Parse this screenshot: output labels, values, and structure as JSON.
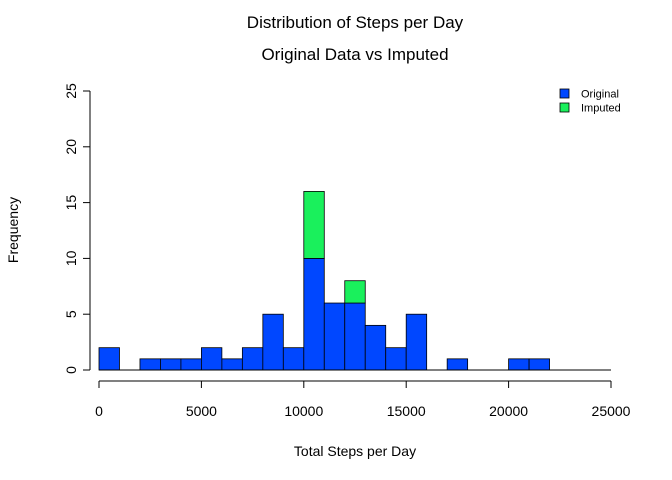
{
  "chart_data": {
    "type": "bar",
    "title": "Distribution of Steps per Day",
    "subtitle": "Original Data vs Imputed",
    "xlabel": "Total Steps per Day",
    "ylabel": "Frequency",
    "xlim": [
      0,
      25000
    ],
    "ylim": [
      0,
      25
    ],
    "xticks": [
      "0",
      "5000",
      "10000",
      "15000",
      "20000",
      "25000"
    ],
    "yticks": [
      "0",
      "5",
      "10",
      "15",
      "20",
      "25"
    ],
    "bin_width": 1000,
    "bin_starts": [
      0,
      1000,
      2000,
      3000,
      4000,
      5000,
      6000,
      7000,
      8000,
      9000,
      10000,
      11000,
      12000,
      13000,
      14000,
      15000,
      16000,
      17000,
      18000,
      19000,
      20000,
      21000,
      22000,
      23000,
      24000
    ],
    "series": [
      {
        "name": "Original",
        "color": "#0047FF",
        "values": [
          2,
          0,
          1,
          1,
          1,
          2,
          1,
          2,
          5,
          2,
          10,
          6,
          6,
          4,
          2,
          5,
          0,
          1,
          0,
          0,
          1,
          1,
          0,
          0,
          0
        ]
      },
      {
        "name": "Imputed",
        "color": "#1AF05C",
        "values": [
          0,
          0,
          0,
          0,
          0,
          0,
          0,
          0,
          0,
          0,
          6,
          0,
          2,
          0,
          0,
          0,
          0,
          0,
          0,
          0,
          0,
          0,
          0,
          0,
          0
        ]
      }
    ],
    "stacked": true,
    "grid": false,
    "legend_position": "top-right"
  }
}
